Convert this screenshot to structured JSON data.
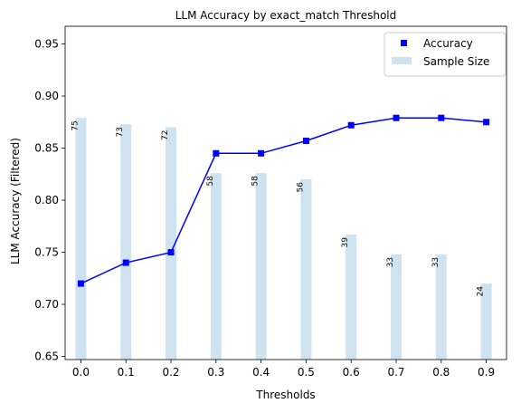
{
  "chart_data": {
    "type": "line",
    "title": "LLM Accuracy by exact_match Threshold",
    "xlabel": "Thresholds",
    "ylabel": "LLM Accuracy (Filtered)",
    "x": [
      0.0,
      0.1,
      0.2,
      0.3,
      0.4,
      0.5,
      0.6,
      0.7,
      0.8,
      0.9
    ],
    "x_tick_labels": [
      "0.0",
      "0.1",
      "0.2",
      "0.3",
      "0.4",
      "0.5",
      "0.6",
      "0.7",
      "0.8",
      "0.9"
    ],
    "y_ticks": [
      0.65,
      0.7,
      0.75,
      0.8,
      0.85,
      0.9,
      0.95
    ],
    "y_tick_labels": [
      "0.65",
      "0.70",
      "0.75",
      "0.80",
      "0.85",
      "0.90",
      "0.95"
    ],
    "ylim": [
      0.647,
      0.967
    ],
    "xlim": [
      -0.035,
      0.945
    ],
    "series": [
      {
        "name": "Accuracy",
        "kind": "line-with-square-markers",
        "color": "#0000ff",
        "values": [
          0.72,
          0.74,
          0.75,
          0.845,
          0.845,
          0.857,
          0.872,
          0.879,
          0.879,
          0.875
        ]
      },
      {
        "name": "Sample Size",
        "kind": "bar",
        "color": "#cfe2f0",
        "values": [
          75,
          73,
          72,
          58,
          58,
          56,
          39,
          33,
          33,
          24
        ],
        "bar_tops": [
          0.879,
          0.873,
          0.87,
          0.826,
          0.826,
          0.82,
          0.767,
          0.748,
          0.748,
          0.72
        ],
        "labels": [
          "75",
          "73",
          "72",
          "58",
          "58",
          "56",
          "39",
          "33",
          "33",
          "24"
        ]
      }
    ],
    "legend": {
      "position": "upper-right",
      "entries": [
        "Accuracy",
        "Sample Size"
      ]
    },
    "grid": false
  }
}
